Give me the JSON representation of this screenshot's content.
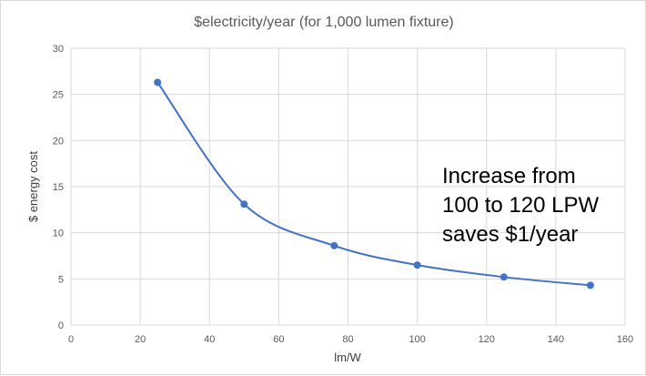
{
  "chart_data": {
    "type": "line",
    "title": "$electricity/year (for 1,000 lumen fixture)",
    "xlabel": "lm/W",
    "ylabel": "$ energy cost",
    "xlim": [
      0,
      160
    ],
    "ylim": [
      0,
      30
    ],
    "x_ticks": [
      0,
      20,
      40,
      60,
      80,
      100,
      120,
      140,
      160
    ],
    "y_ticks": [
      0,
      5,
      10,
      15,
      20,
      25,
      30
    ],
    "grid": true,
    "smooth": true,
    "series": [
      {
        "color": "#4472c4",
        "points": [
          {
            "x": 25,
            "y": 26.3
          },
          {
            "x": 50,
            "y": 13.1
          },
          {
            "x": 76,
            "y": 8.6
          },
          {
            "x": 100,
            "y": 6.5
          },
          {
            "x": 125,
            "y": 5.2
          },
          {
            "x": 150,
            "y": 4.3
          }
        ]
      }
    ],
    "annotation": {
      "lines": [
        "Increase from",
        "100 to 120 LPW",
        "saves $1/year"
      ]
    }
  }
}
